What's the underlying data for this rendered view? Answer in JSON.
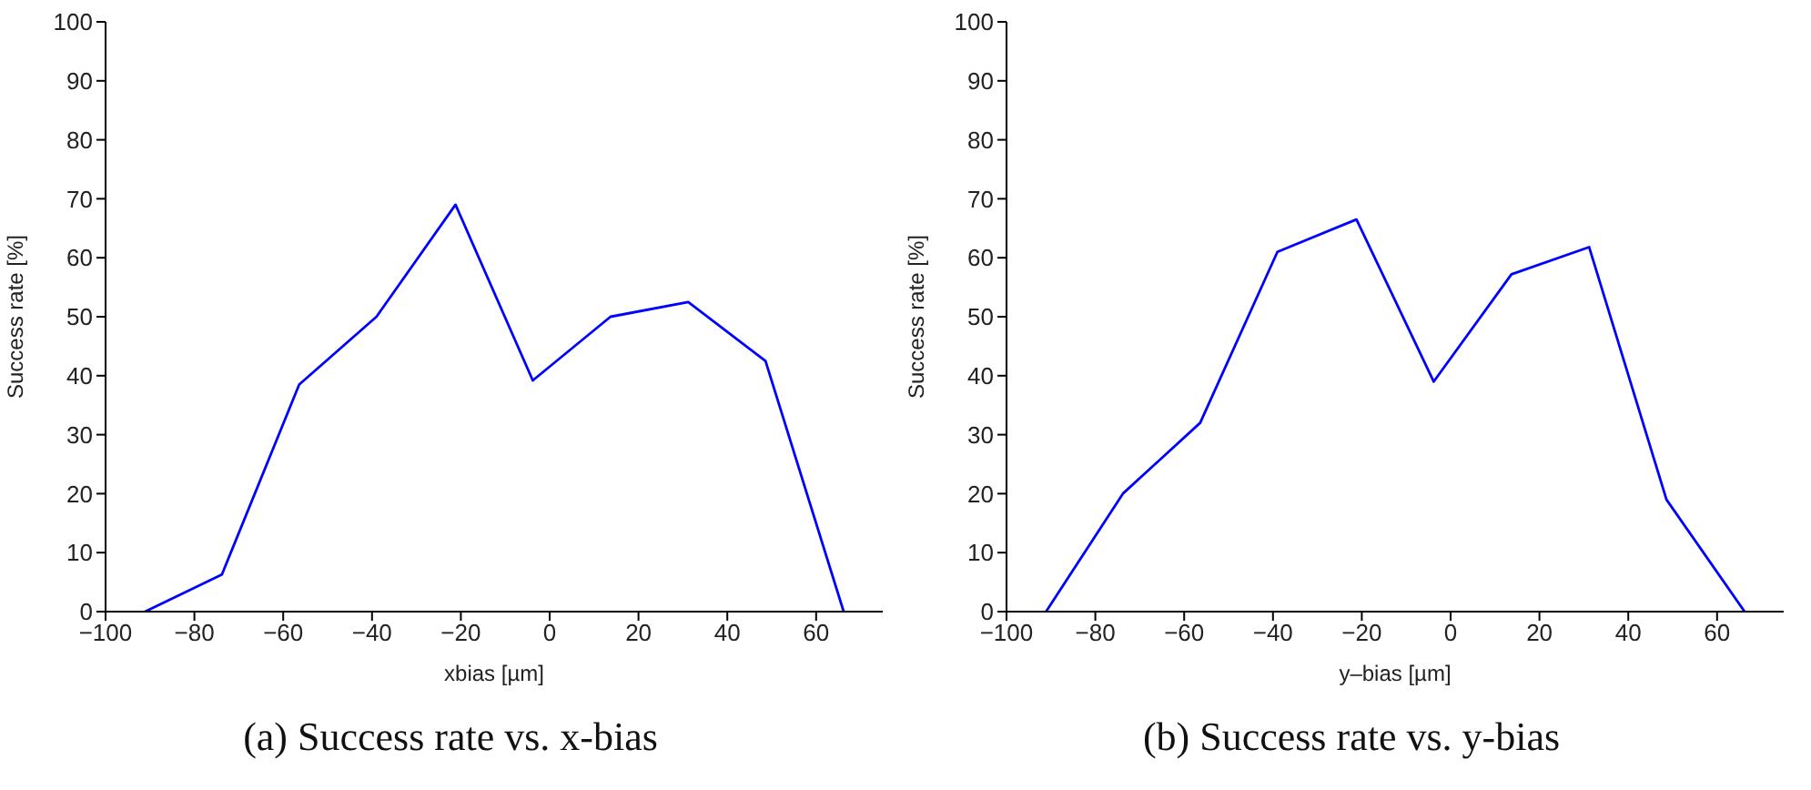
{
  "chart_data": [
    {
      "type": "line",
      "title": "(a) Success rate vs. x-bias",
      "xlabel": "xbias [µm]",
      "ylabel": "Success rate [%]",
      "x": [
        -91.1,
        -73.8,
        -56.4,
        -39,
        -21.2,
        -3.8,
        13.7,
        31.2,
        48.6,
        66.2
      ],
      "series": [
        {
          "color": "#0000ff",
          "values": [
            0,
            6.3,
            38.5,
            50,
            69,
            39.2,
            50,
            52.5,
            42.5,
            0
          ]
        }
      ],
      "xlim": [
        -100,
        75
      ],
      "xticks": [
        -100,
        -80,
        -60,
        -40,
        -20,
        0,
        20,
        40,
        60
      ],
      "ylim": [
        0,
        100
      ],
      "yticks": [
        0,
        10,
        20,
        30,
        40,
        50,
        60,
        70,
        80,
        90,
        100
      ],
      "grid": false,
      "legend": false,
      "marker": "none",
      "line_style": "solid"
    },
    {
      "type": "line",
      "title": "(b) Success rate vs. y-bias",
      "xlabel": "y–bias [µm]",
      "ylabel": "Success rate [%]",
      "x": [
        -91.1,
        -73.8,
        -56.4,
        -39,
        -21.2,
        -3.8,
        13.7,
        31.2,
        48.6,
        66.2
      ],
      "series": [
        {
          "color": "#0000ff",
          "values": [
            0,
            20,
            32,
            61,
            66.5,
            39,
            57.2,
            61.8,
            19,
            0
          ]
        }
      ],
      "xlim": [
        -100,
        75
      ],
      "xticks": [
        -100,
        -80,
        -60,
        -40,
        -20,
        0,
        20,
        40,
        60
      ],
      "ylim": [
        0,
        100
      ],
      "yticks": [
        0,
        10,
        20,
        30,
        40,
        50,
        60,
        70,
        80,
        90,
        100
      ],
      "grid": false,
      "legend": false,
      "marker": "none",
      "line_style": "solid"
    }
  ]
}
